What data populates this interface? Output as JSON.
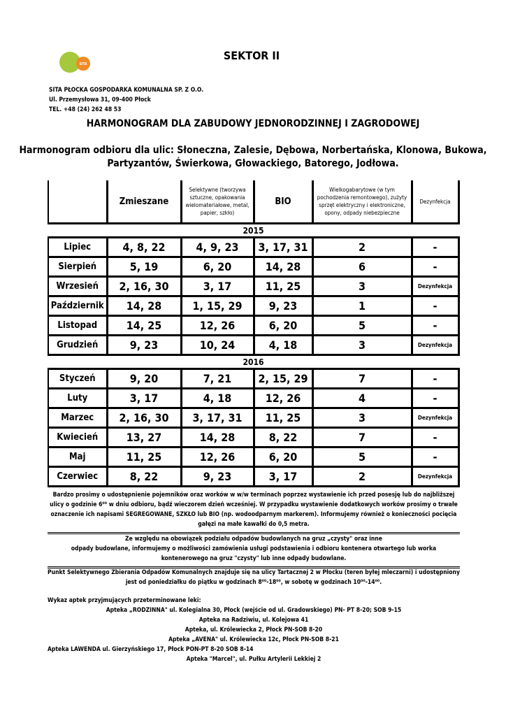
{
  "header": {
    "logo_text": "SITA",
    "sector": "SEKTOR II",
    "company": [
      "SITA PŁOCKA GOSPODARKA KOMUNALNA SP. Z O.O.",
      "Ul. Przemysłowa 31, 09-400 Płock",
      "TEL. +48 (24) 262 48 53"
    ],
    "title": "HARMONOGRAM DLA ZABUDOWY JEDNORODZINNEJ I ZAGRODOWEJ",
    "subtitle": [
      "Harmonogram odbioru dla ulic: Słoneczna, Zalesie, Dębowa, Norbertańska, Klonowa, Bukowa,",
      "Partyzantów, Świerkowa, Głowackiego, Batorego, Jodłowa."
    ]
  },
  "table": {
    "headers": [
      "Zmieszane",
      "Selektywne (tworzywa sztuczne, opakowania wielomateriałowe, metal, papier, szkło)",
      "BIO",
      "Wielkogabarytowe (w tym pochodzenia remontowego), zużyty sprzęt elektryczny i elektroniczne, opony, odpady niebezpieczne",
      "Dezynfekcja"
    ],
    "sections": [
      {
        "year": "2015",
        "rows": [
          [
            "Lipiec",
            "4, 8, 22",
            "4, 9, 23",
            "3, 17, 31",
            "2",
            "-"
          ],
          [
            "Sierpień",
            "5, 19",
            "6, 20",
            "14, 28",
            "6",
            "-"
          ],
          [
            "Wrzesień",
            "2, 16, 30",
            "3, 17",
            "11, 25",
            "3",
            "Dezynfekcja"
          ],
          [
            "Październik",
            "14, 28",
            "1, 15, 29",
            "9, 23",
            "1",
            "-"
          ],
          [
            "Listopad",
            "14, 25",
            "12, 26",
            "6, 20",
            "5",
            "-"
          ],
          [
            "Grudzień",
            "9, 23",
            "10, 24",
            "4, 18",
            "3",
            "Dezynfekcja"
          ]
        ]
      },
      {
        "year": "2016",
        "rows": [
          [
            "Styczeń",
            "9, 20",
            "7, 21",
            "2, 15, 29",
            "7",
            "-"
          ],
          [
            "Luty",
            "3, 17",
            "4, 18",
            "12, 26",
            "4",
            "-"
          ],
          [
            "Marzec",
            "2, 16, 30",
            "3, 17, 31",
            "11, 25",
            "3",
            "Dezynfekcja"
          ],
          [
            "Kwiecień",
            "13, 27",
            "14, 28",
            "8, 22",
            "7",
            "-"
          ],
          [
            "Maj",
            "11, 25",
            "12, 26",
            "6, 20",
            "5",
            "-"
          ],
          [
            "Czerwiec",
            "8, 22",
            "9, 23",
            "3, 17",
            "2",
            "Dezynfekcja"
          ]
        ]
      }
    ]
  },
  "notes": [
    [
      "Bardzo prosimy o udostępnienie pojemników oraz worków w w/w terminach poprzez wystawienie ich przed posesję lub do najbliższej",
      "ulicy o godzinie 6⁰⁰ w dniu odbioru, bądź wieczorem dzień wcześniej. W przypadku wystawienie dodatkowych worków prosimy o trwałe",
      "oznaczenie ich napisami SEGREGOWANE, SZKŁO lub BIO (np. wodoodparnym markerem). Informujemy również o konieczności pocięcia",
      "gałęzi na małe kawałki do 0,5 metra."
    ],
    [
      "Ze względu na obowiązek podziału odpadów budowlanych na gruz „czysty\" oraz inne",
      "odpady budowlane, informujemy o możliwości zamówienia usługi podstawienia i odbioru kontenera otwartego lub worka",
      "kontenerowego na gruz \"czysty\" lub inne odpady budowlane."
    ],
    [
      "Punkt Selektywnego Zbierania Odpadów Komunalnych znajduje się na ulicy Tartacznej 2 w Płocku (teren byłej mleczarni) i udostępniony",
      "jest od poniedziałku do piątku w godzinach 8⁰⁰-18⁰⁰, w sobotę w godzinach 10⁰⁰-14⁰⁰."
    ]
  ],
  "pharmacies": {
    "heading": "Wykaz aptek przyjmujących przeterminowane leki:",
    "items": [
      "Apteka „RODZINNA\" ul. Kolegialna 30, Płock (wejście od ul. Gradowskiego) PN- PT 8-20; SOB 9-15",
      "Apteka na Radziwiu, ul. Kolejowa 41",
      "Apteka, ul. Królewiecka 2, Płock PN-SOB 8-20",
      "Apteka „AVENA\" ul. Królewiecka 12c, Płock PN-SOB 8-21",
      "Apteka LAWENDA ul. Gierzyńskiego 17, Płock PON-PT 8-20 SOB 8-14",
      "Apteka \"Marcel\", ul. Pułku Artylerii Lekkiej 2"
    ]
  }
}
